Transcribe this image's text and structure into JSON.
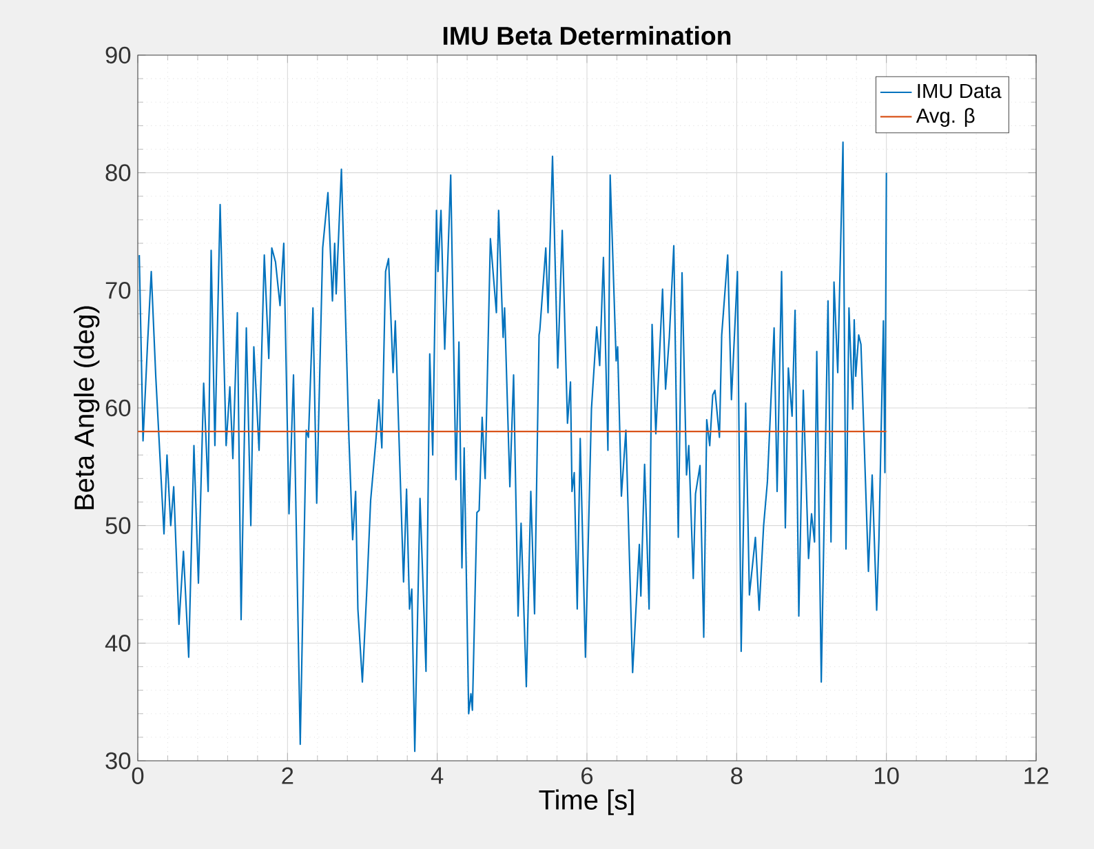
{
  "chart_data": {
    "type": "line",
    "title": "IMU Beta Determination",
    "xlabel": "Time [s]",
    "ylabel": "Beta Angle (deg)",
    "xlim": [
      0,
      12
    ],
    "ylim": [
      30,
      90
    ],
    "xticks": [
      0,
      2,
      4,
      6,
      8,
      10,
      12
    ],
    "yticks": [
      30,
      40,
      50,
      60,
      70,
      80,
      90
    ],
    "grid": true,
    "legend": "top right",
    "marker": "none",
    "line_style": "solid",
    "series": [
      {
        "name": "IMU Data",
        "color": "#0072bd",
        "x": [
          0.02,
          0.07,
          0.13,
          0.18,
          0.24,
          0.35,
          0.39,
          0.44,
          0.48,
          0.55,
          0.61,
          0.68,
          0.75,
          0.81,
          0.88,
          0.94,
          0.98,
          1.03,
          1.1,
          1.18,
          1.23,
          1.27,
          1.33,
          1.38,
          1.45,
          1.51,
          1.55,
          1.62,
          1.69,
          1.75,
          1.79,
          1.84,
          1.9,
          1.95,
          2.02,
          2.08,
          2.17,
          2.25,
          2.28,
          2.34,
          2.39,
          2.47,
          2.54,
          2.6,
          2.63,
          2.65,
          2.72,
          2.82,
          2.87,
          2.91,
          2.94,
          3.0,
          3.06,
          3.11,
          3.18,
          3.22,
          3.26,
          3.31,
          3.35,
          3.41,
          3.44,
          3.55,
          3.59,
          3.63,
          3.66,
          3.7,
          3.77,
          3.85,
          3.9,
          3.94,
          3.99,
          4.01,
          4.05,
          4.1,
          4.18,
          4.25,
          4.29,
          4.33,
          4.36,
          4.42,
          4.45,
          4.47,
          4.53,
          4.56,
          4.6,
          4.64,
          4.71,
          4.79,
          4.82,
          4.88,
          4.9,
          4.97,
          5.02,
          5.08,
          5.12,
          5.19,
          5.25,
          5.3,
          5.36,
          5.37,
          5.45,
          5.48,
          5.54,
          5.61,
          5.67,
          5.74,
          5.78,
          5.8,
          5.83,
          5.87,
          5.91,
          5.98,
          6.06,
          6.13,
          6.17,
          6.22,
          6.28,
          6.31,
          6.39,
          6.41,
          6.46,
          6.52,
          6.61,
          6.7,
          6.72,
          6.77,
          6.83,
          6.87,
          6.92,
          7.01,
          7.05,
          7.1,
          7.16,
          7.22,
          7.27,
          7.33,
          7.36,
          7.42,
          7.45,
          7.51,
          7.56,
          7.6,
          7.64,
          7.68,
          7.71,
          7.77,
          7.8,
          7.88,
          7.93,
          8.01,
          8.06,
          8.12,
          8.17,
          8.25,
          8.3,
          8.36,
          8.41,
          8.5,
          8.54,
          8.6,
          8.65,
          8.69,
          8.74,
          8.78,
          8.83,
          8.89,
          8.96,
          9.0,
          9.04,
          9.07,
          9.13,
          9.22,
          9.26,
          9.3,
          9.35,
          9.42,
          9.46,
          9.5,
          9.55,
          9.57,
          9.59,
          9.63,
          9.66,
          9.76,
          9.81,
          9.87,
          9.9,
          9.96,
          9.98,
          10.0
        ],
        "values": [
          73.0,
          57.2,
          65.4,
          71.6,
          62.7,
          49.3,
          56.0,
          50.0,
          53.3,
          41.6,
          47.8,
          38.8,
          56.8,
          45.1,
          62.1,
          52.9,
          73.4,
          56.8,
          77.3,
          56.8,
          61.8,
          55.7,
          68.1,
          42.0,
          66.8,
          50.0,
          65.2,
          56.4,
          73.0,
          64.2,
          73.6,
          72.4,
          68.7,
          74.0,
          51.0,
          62.8,
          31.4,
          58.1,
          57.5,
          68.5,
          51.9,
          73.6,
          78.3,
          69.1,
          74.0,
          69.7,
          80.3,
          57.5,
          48.8,
          52.9,
          42.9,
          36.7,
          44.6,
          52.1,
          57.2,
          60.7,
          56.6,
          71.6,
          72.7,
          63.0,
          67.4,
          45.2,
          53.1,
          42.9,
          44.6,
          30.8,
          52.3,
          37.6,
          64.6,
          56.0,
          76.8,
          71.6,
          76.8,
          65.0,
          79.8,
          53.9,
          65.6,
          46.4,
          56.6,
          34.0,
          35.7,
          34.3,
          51.1,
          51.3,
          59.2,
          54.0,
          74.4,
          68.1,
          76.8,
          66.0,
          68.5,
          53.3,
          62.8,
          42.3,
          50.2,
          36.3,
          52.9,
          42.5,
          66.2,
          66.6,
          73.6,
          68.1,
          81.4,
          63.4,
          75.1,
          58.7,
          62.2,
          52.9,
          54.5,
          42.9,
          57.4,
          38.8,
          59.9,
          66.9,
          63.6,
          72.8,
          56.4,
          79.8,
          64.0,
          65.2,
          52.5,
          58.1,
          37.5,
          48.4,
          44.0,
          55.2,
          42.9,
          67.1,
          57.8,
          70.1,
          61.6,
          66.0,
          73.8,
          49.0,
          71.5,
          54.3,
          56.8,
          45.5,
          52.7,
          55.1,
          40.5,
          59.0,
          56.8,
          61.1,
          61.5,
          57.5,
          66.2,
          73.0,
          60.7,
          71.6,
          39.3,
          60.4,
          44.1,
          49.0,
          42.8,
          50.0,
          53.7,
          66.8,
          52.9,
          71.6,
          49.8,
          63.4,
          59.3,
          68.3,
          42.3,
          61.5,
          47.2,
          51.0,
          48.6,
          64.8,
          36.7,
          69.1,
          48.6,
          70.7,
          63.0,
          82.6,
          48.0,
          68.5,
          59.9,
          67.5,
          62.7,
          66.2,
          65.4,
          46.1,
          54.3,
          42.8,
          48.8,
          67.4,
          54.5,
          80.0
        ]
      },
      {
        "name": "Avg. β",
        "color": "#d95319",
        "x": [
          0,
          10
        ],
        "values": [
          58.0,
          58.0
        ]
      }
    ]
  }
}
